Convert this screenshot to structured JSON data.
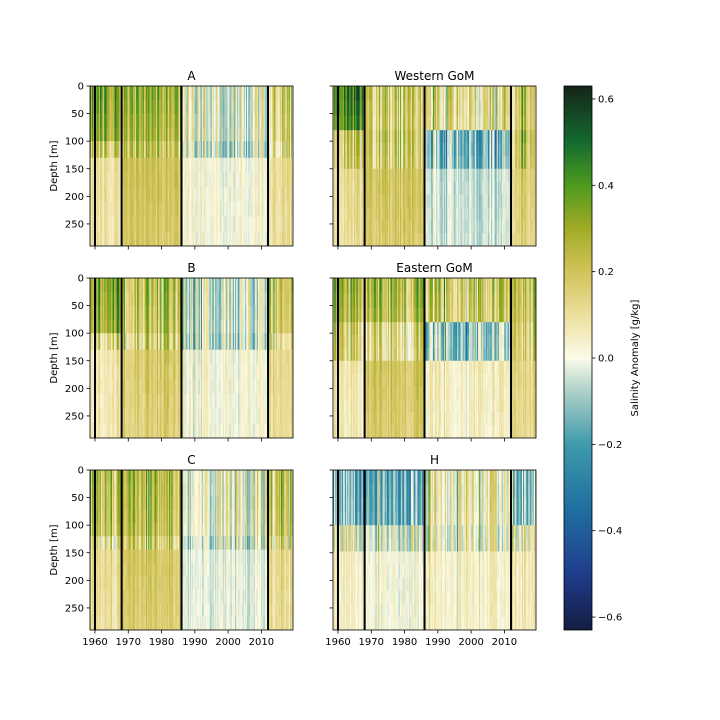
{
  "chart_data": {
    "type": "heatmap",
    "layout": "3 rows x 2 columns of depth-time sections sharing one colorbar",
    "shared_x_ticks": [
      1960,
      1970,
      1980,
      1990,
      2000,
      2010
    ],
    "x_range_years": [
      1958.5,
      2019.5
    ],
    "depth_ticks": [
      0,
      50,
      100,
      150,
      200,
      250
    ],
    "depth_range_m": [
      0,
      290
    ],
    "ylabel": "Depth [m]",
    "vertical_markers_years": [
      1960,
      1968,
      1986,
      2012
    ],
    "colorbar": {
      "label": "Salinity Anomaly [g/kg]",
      "range": [
        -0.63,
        0.63
      ],
      "ticks": [
        0.6,
        0.4,
        0.2,
        0.0,
        -0.2,
        -0.4,
        -0.6
      ],
      "tick_labels": [
        "0.6",
        "0.4",
        "0.2",
        "0.0",
        "−0.2",
        "−0.4",
        "−0.6"
      ],
      "colormap_stops": [
        [
          -0.63,
          "#141d43"
        ],
        [
          -0.5,
          "#1f3d8c"
        ],
        [
          -0.35,
          "#1f6fa0"
        ],
        [
          -0.2,
          "#3e9aab"
        ],
        [
          -0.08,
          "#aacfc8"
        ],
        [
          0.0,
          "#fbfbe8"
        ],
        [
          0.1,
          "#ecdf9c"
        ],
        [
          0.2,
          "#d2c35a"
        ],
        [
          0.3,
          "#a1ab25"
        ],
        [
          0.4,
          "#4e9a1f"
        ],
        [
          0.5,
          "#136b30"
        ],
        [
          0.63,
          "#152418"
        ]
      ]
    },
    "panels": [
      {
        "title": "A",
        "row": 0,
        "col": 0,
        "show_ylabel": true,
        "show_xticks": false,
        "depth_bands": [
          {
            "from": 0,
            "to": 100,
            "periods": [
              0.35,
              0.28,
              0.02,
              0.18
            ]
          },
          {
            "from": 100,
            "to": 130,
            "periods": [
              0.2,
              0.2,
              -0.02,
              0.12
            ]
          },
          {
            "from": 130,
            "to": 290,
            "periods": [
              0.1,
              0.2,
              0.02,
              0.12
            ]
          }
        ]
      },
      {
        "title": "Western GoM",
        "row": 0,
        "col": 1,
        "show_ylabel": false,
        "show_xticks": false,
        "depth_bands": [
          {
            "from": 0,
            "to": 80,
            "periods": [
              0.4,
              0.2,
              0.12,
              0.18
            ]
          },
          {
            "from": 80,
            "to": 150,
            "periods": [
              0.15,
              0.2,
              -0.15,
              0.2
            ]
          },
          {
            "from": 150,
            "to": 290,
            "periods": [
              0.1,
              0.2,
              -0.05,
              0.15
            ]
          }
        ]
      },
      {
        "title": "B",
        "row": 1,
        "col": 0,
        "show_ylabel": true,
        "show_xticks": false,
        "depth_bands": [
          {
            "from": 0,
            "to": 100,
            "periods": [
              0.35,
              0.25,
              -0.02,
              0.2
            ]
          },
          {
            "from": 100,
            "to": 130,
            "periods": [
              0.15,
              0.18,
              -0.03,
              0.1
            ]
          },
          {
            "from": 130,
            "to": 290,
            "periods": [
              0.08,
              0.18,
              0.02,
              0.12
            ]
          }
        ]
      },
      {
        "title": "Eastern GoM",
        "row": 1,
        "col": 1,
        "show_ylabel": false,
        "show_xticks": false,
        "depth_bands": [
          {
            "from": 0,
            "to": 80,
            "periods": [
              0.3,
              0.28,
              0.2,
              0.25
            ]
          },
          {
            "from": 80,
            "to": 150,
            "periods": [
              0.2,
              0.15,
              -0.1,
              0.2
            ]
          },
          {
            "from": 150,
            "to": 290,
            "periods": [
              0.08,
              0.2,
              0.05,
              0.15
            ]
          }
        ]
      },
      {
        "title": "C",
        "row": 2,
        "col": 0,
        "show_ylabel": true,
        "show_xticks": true,
        "depth_bands": [
          {
            "from": 0,
            "to": 120,
            "periods": [
              0.25,
              0.28,
              0.02,
              0.2
            ]
          },
          {
            "from": 120,
            "to": 290,
            "periods": [
              0.12,
              0.2,
              -0.02,
              0.12
            ]
          }
        ]
      },
      {
        "title": "H",
        "row": 2,
        "col": 1,
        "show_ylabel": false,
        "show_xticks": true,
        "depth_bands": [
          {
            "from": 0,
            "to": 100,
            "periods": [
              -0.15,
              -0.15,
              0.08,
              -0.1
            ]
          },
          {
            "from": 100,
            "to": 290,
            "periods": [
              0.05,
              0.02,
              0.05,
              0.08
            ]
          }
        ]
      }
    ]
  }
}
